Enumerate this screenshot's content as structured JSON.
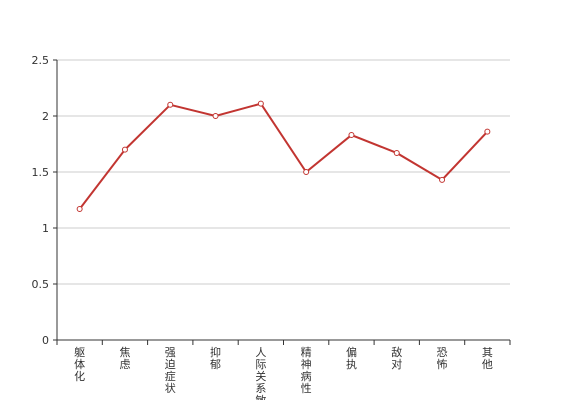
{
  "chart_data": {
    "type": "line",
    "categories": [
      "躯体化",
      "焦虑",
      "强迫症状",
      "抑郁",
      "人际关系敏感",
      "精神病性",
      "偏执",
      "敌对",
      "恐怖",
      "其他"
    ],
    "values": [
      1.17,
      1.7,
      2.1,
      2.0,
      2.11,
      1.5,
      1.83,
      1.67,
      1.43,
      1.86
    ],
    "color": "#c23531",
    "ylim": [
      0,
      2.5
    ],
    "yticks": [
      0,
      0.5,
      1,
      1.5,
      2,
      2.5
    ],
    "grid": true
  }
}
